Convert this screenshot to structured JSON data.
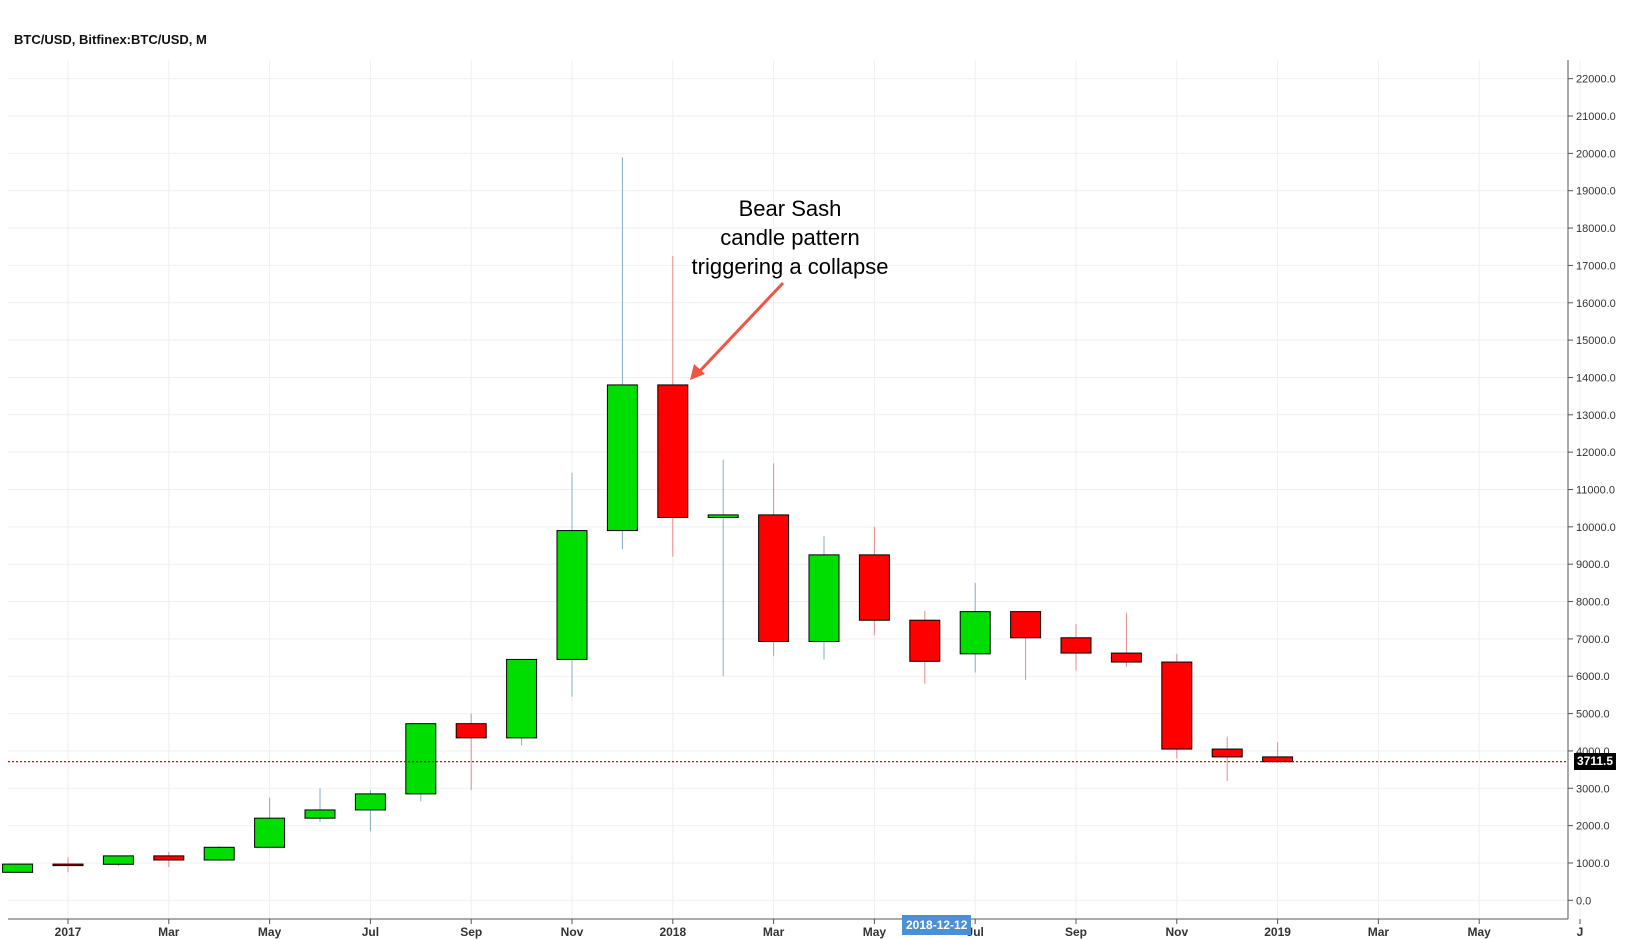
{
  "title": "BTC/USD, Bitfinex:BTC/USD, M",
  "annotation": {
    "lines": [
      "Bear Sash",
      "candle pattern",
      "triggering a collapse"
    ]
  },
  "colors": {
    "up": "#00dd00",
    "down": "#ff0000",
    "grid": "#efeff5",
    "axis": "#555555",
    "arrow": "#ee5544",
    "price_line": "#990000"
  },
  "crosshair_date": "2018-12-12",
  "chart_data": {
    "type": "candlestick",
    "ylim": [
      -500,
      22500
    ],
    "y_ticks": [
      "0.0",
      "1000.0",
      "2000.0",
      "3000.0",
      "4000.0",
      "5000.0",
      "6000.0",
      "7000.0",
      "8000.0",
      "9000.0",
      "10000.0",
      "11000.0",
      "12000.0",
      "13000.0",
      "14000.0",
      "15000.0",
      "16000.0",
      "17000.0",
      "18000.0",
      "19000.0",
      "20000.0",
      "21000.0",
      "22000.0"
    ],
    "x_ticks": [
      {
        "label": "2017",
        "date": "2017-01"
      },
      {
        "label": "Mar",
        "date": "2017-03"
      },
      {
        "label": "May",
        "date": "2017-05"
      },
      {
        "label": "Jul",
        "date": "2017-07"
      },
      {
        "label": "Sep",
        "date": "2017-09"
      },
      {
        "label": "Nov",
        "date": "2017-11"
      },
      {
        "label": "2018",
        "date": "2018-01"
      },
      {
        "label": "Mar",
        "date": "2018-03"
      },
      {
        "label": "May",
        "date": "2018-05"
      },
      {
        "label": "Jul",
        "date": "2018-07"
      },
      {
        "label": "Sep",
        "date": "2018-09"
      },
      {
        "label": "Nov",
        "date": "2018-11"
      },
      {
        "label": "2019",
        "date": "2019-01"
      },
      {
        "label": "Mar",
        "date": "2019-03"
      },
      {
        "label": "May",
        "date": "2019-05"
      },
      {
        "label": "J",
        "date": "2019-07"
      }
    ],
    "candles": [
      {
        "date": "2016-12",
        "open": 750,
        "high": 980,
        "low": 740,
        "close": 970
      },
      {
        "date": "2017-01",
        "open": 970,
        "high": 1150,
        "low": 750,
        "close": 965
      },
      {
        "date": "2017-02",
        "open": 965,
        "high": 1200,
        "low": 920,
        "close": 1190
      },
      {
        "date": "2017-03",
        "open": 1190,
        "high": 1300,
        "low": 890,
        "close": 1080
      },
      {
        "date": "2017-04",
        "open": 1080,
        "high": 1450,
        "low": 1060,
        "close": 1420
      },
      {
        "date": "2017-05",
        "open": 1420,
        "high": 2750,
        "low": 1400,
        "close": 2200
      },
      {
        "date": "2017-06",
        "open": 2200,
        "high": 3000,
        "low": 2100,
        "close": 2420
      },
      {
        "date": "2017-07",
        "open": 2420,
        "high": 2950,
        "low": 1850,
        "close": 2850
      },
      {
        "date": "2017-08",
        "open": 2850,
        "high": 4750,
        "low": 2650,
        "close": 4730
      },
      {
        "date": "2017-09",
        "open": 4730,
        "high": 5000,
        "low": 2950,
        "close": 4350
      },
      {
        "date": "2017-10",
        "open": 4350,
        "high": 6450,
        "low": 4150,
        "close": 6450
      },
      {
        "date": "2017-11",
        "open": 6450,
        "high": 11450,
        "low": 5450,
        "close": 9900
      },
      {
        "date": "2017-12",
        "open": 9900,
        "high": 19900,
        "low": 9400,
        "close": 13800
      },
      {
        "date": "2018-01",
        "open": 13800,
        "high": 17250,
        "low": 9200,
        "close": 10250
      },
      {
        "date": "2018-02",
        "open": 10250,
        "high": 11800,
        "low": 6000,
        "close": 10320
      },
      {
        "date": "2018-03",
        "open": 10320,
        "high": 11700,
        "low": 6550,
        "close": 6930
      },
      {
        "date": "2018-04",
        "open": 6930,
        "high": 9750,
        "low": 6450,
        "close": 9250
      },
      {
        "date": "2018-05",
        "open": 9250,
        "high": 10000,
        "low": 7100,
        "close": 7500
      },
      {
        "date": "2018-06",
        "open": 7500,
        "high": 7750,
        "low": 5800,
        "close": 6400
      },
      {
        "date": "2018-07",
        "open": 6600,
        "high": 8500,
        "low": 6100,
        "close": 7730
      },
      {
        "date": "2018-08",
        "open": 7730,
        "high": 7730,
        "low": 5900,
        "close": 7030
      },
      {
        "date": "2018-09",
        "open": 7030,
        "high": 7400,
        "low": 6150,
        "close": 6620
      },
      {
        "date": "2018-10",
        "open": 6620,
        "high": 7700,
        "low": 6250,
        "close": 6380
      },
      {
        "date": "2018-11",
        "open": 6380,
        "high": 6600,
        "low": 3800,
        "close": 4050
      },
      {
        "date": "2018-12",
        "open": 4050,
        "high": 4380,
        "low": 3200,
        "close": 3840
      },
      {
        "date": "2019-01",
        "open": 3840,
        "high": 4230,
        "low": 3700,
        "close": 3711.5
      }
    ],
    "last_price": 3711.5,
    "last_price_label": "3711.5",
    "hidden_tick_label": "3000.0",
    "grid": true
  }
}
